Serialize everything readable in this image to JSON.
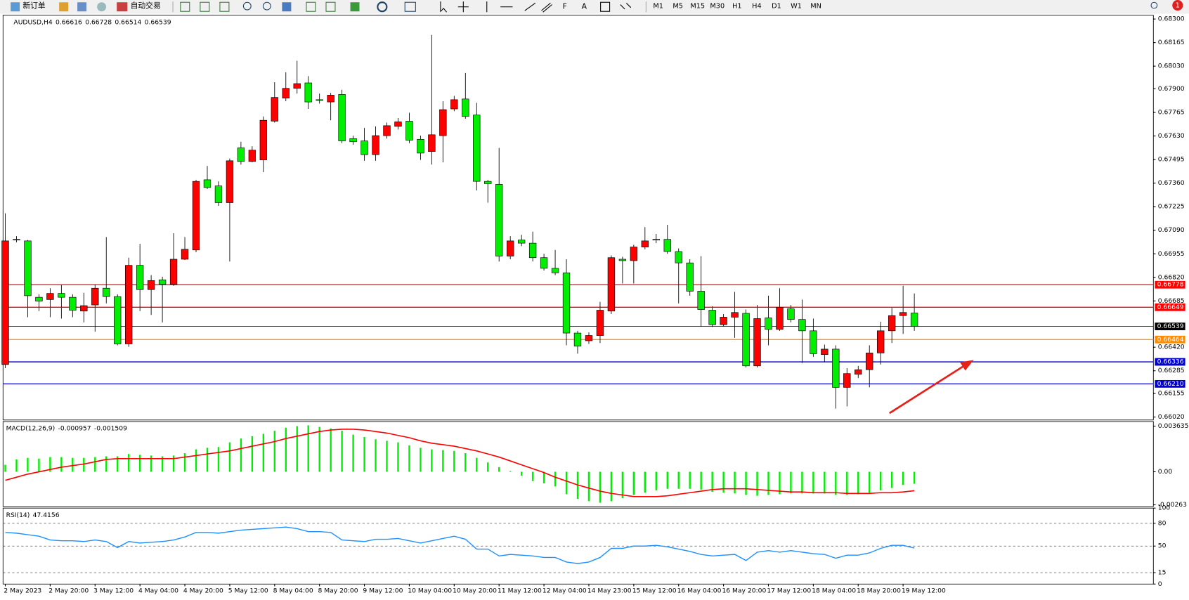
{
  "toolbar": {
    "new_order": "新订单",
    "auto_trading": "自动交易",
    "timeframes": [
      "M1",
      "M5",
      "M15",
      "M30",
      "H1",
      "H4",
      "D1",
      "W1",
      "MN"
    ],
    "notification_count": 1
  },
  "chart_data": [
    {
      "type": "candlestick",
      "title": "AUDUSD,H4",
      "up_color": "#ff0000",
      "down_color": "#00ee00",
      "open": [
        0.66321,
        0.67038,
        0.67029,
        0.66706,
        0.66693,
        0.66728,
        0.66706,
        0.66627,
        0.66662,
        0.66758,
        0.6671,
        0.66439,
        0.66889,
        0.6675,
        0.66806,
        0.6678,
        0.66924,
        0.66977,
        0.67379,
        0.67344,
        0.67248,
        0.67562,
        0.67484,
        0.67493,
        0.67715,
        0.67847,
        0.67903,
        0.67934,
        0.67838,
        0.67825,
        0.67868,
        0.67615,
        0.67602,
        0.67523,
        0.67632,
        0.67685,
        0.67715,
        0.67611,
        0.67541,
        0.67632,
        0.67785,
        0.67842,
        0.6775,
        0.6737,
        0.67353,
        0.66942,
        0.67034,
        0.67016,
        0.66933,
        0.66872,
        0.66846,
        0.66501,
        0.66457,
        0.66487,
        0.66627,
        0.66924,
        0.66916,
        0.66994,
        0.67038,
        0.67038,
        0.66968,
        0.66903,
        0.66741,
        0.66632,
        0.66549,
        0.66592,
        0.66614,
        0.66313,
        0.66588,
        0.66522,
        0.6664,
        0.66579,
        0.66514,
        0.66378,
        0.66409,
        0.6619,
        0.66265,
        0.66291,
        0.66387,
        0.66514,
        0.66601,
        0.66616
      ],
      "high": [
        0.67187,
        0.67056,
        0.67034,
        0.66723,
        0.66758,
        0.66776,
        0.66723,
        0.66732,
        0.6678,
        0.67051,
        0.66723,
        0.66933,
        0.67012,
        0.66833,
        0.66824,
        0.67073,
        0.67051,
        0.67379,
        0.67458,
        0.6737,
        0.67501,
        0.67597,
        0.67571,
        0.67742,
        0.67938,
        0.67995,
        0.68061,
        0.67973,
        0.67873,
        0.67877,
        0.67895,
        0.67632,
        0.67676,
        0.67685,
        0.67707,
        0.67733,
        0.67763,
        0.67632,
        0.68209,
        0.67829,
        0.6786,
        0.67991,
        0.6782,
        0.67379,
        0.67562,
        0.67056,
        0.67064,
        0.67082,
        0.66955,
        0.66977,
        0.66924,
        0.66514,
        0.66505,
        0.6668,
        0.66946,
        0.66938,
        0.67007,
        0.67108,
        0.67069,
        0.67121,
        0.66986,
        0.66924,
        0.66942,
        0.66654,
        0.6661,
        0.66737,
        0.66636,
        0.66662,
        0.66715,
        0.66758,
        0.66662,
        0.66693,
        0.66584,
        0.66435,
        0.66431,
        0.663,
        0.66313,
        0.66431,
        0.66566,
        0.66645,
        0.66772,
        0.66728
      ],
      "low": [
        0.663,
        0.67021,
        0.66592,
        0.66627,
        0.66592,
        0.66584,
        0.66592,
        0.66562,
        0.66509,
        0.66671,
        0.66431,
        0.66422,
        0.66627,
        0.66605,
        0.66562,
        0.66772,
        0.6692,
        0.66964,
        0.67326,
        0.6723,
        0.66911,
        0.67466,
        0.67479,
        0.67423,
        0.67707,
        0.67829,
        0.67873,
        0.67785,
        0.67816,
        0.6772,
        0.67589,
        0.6758,
        0.67488,
        0.67488,
        0.67615,
        0.67667,
        0.67589,
        0.67493,
        0.67466,
        0.67479,
        0.67772,
        0.67729,
        0.67318,
        0.67248,
        0.66911,
        0.66924,
        0.66999,
        0.66911,
        0.66859,
        0.66833,
        0.66431,
        0.66383,
        0.66439,
        0.66444,
        0.6661,
        0.66785,
        0.66785,
        0.66981,
        0.67016,
        0.66955,
        0.66671,
        0.66715,
        0.6654,
        0.66536,
        0.6654,
        0.66474,
        0.66304,
        0.66304,
        0.66431,
        0.66514,
        0.66562,
        0.6633,
        0.66365,
        0.66335,
        0.66068,
        0.66081,
        0.66243,
        0.6619,
        0.66321,
        0.66444,
        0.66496,
        0.66514
      ],
      "close": [
        0.67029,
        0.67034,
        0.66715,
        0.66684,
        0.66728,
        0.66706,
        0.66632,
        0.66658,
        0.66758,
        0.6671,
        0.66439,
        0.66889,
        0.6675,
        0.66802,
        0.6678,
        0.66924,
        0.66981,
        0.6737,
        0.67335,
        0.67248,
        0.67488,
        0.67484,
        0.67549,
        0.6772,
        0.67851,
        0.67903,
        0.6793,
        0.67825,
        0.67838,
        0.67864,
        0.67602,
        0.67597,
        0.67523,
        0.67632,
        0.67689,
        0.67711,
        0.67606,
        0.67532,
        0.67637,
        0.67781,
        0.67838,
        0.67742,
        0.6737,
        0.67357,
        0.66942,
        0.67029,
        0.67016,
        0.66933,
        0.66872,
        0.66846,
        0.66501,
        0.66426,
        0.66487,
        0.66632,
        0.66933,
        0.66916,
        0.66994,
        0.67029,
        0.67038,
        0.66968,
        0.66903,
        0.66741,
        0.66636,
        0.66549,
        0.66592,
        0.66619,
        0.66313,
        0.66584,
        0.66522,
        0.66649,
        0.66579,
        0.66514,
        0.66383,
        0.66409,
        0.6619,
        0.66269,
        0.66291,
        0.66387,
        0.66514,
        0.66601,
        0.66619,
        0.66539
      ],
      "xlim": [
        -0.2,
        102.3
      ],
      "xticks": [
        {
          "value": 0,
          "label": "2 May 2023"
        },
        {
          "value": 4,
          "label": "2 May 20:00"
        },
        {
          "value": 8,
          "label": "3 May 12:00"
        },
        {
          "value": 12,
          "label": "4 May 04:00"
        },
        {
          "value": 16,
          "label": "4 May 20:00"
        },
        {
          "value": 20,
          "label": "5 May 12:00"
        },
        {
          "value": 24,
          "label": "8 May 04:00"
        },
        {
          "value": 28,
          "label": "8 May 20:00"
        },
        {
          "value": 32,
          "label": "9 May 12:00"
        },
        {
          "value": 36,
          "label": "10 May 04:00"
        },
        {
          "value": 40,
          "label": "10 May 20:00"
        },
        {
          "value": 44,
          "label": "11 May 12:00"
        },
        {
          "value": 48,
          "label": "12 May 04:00"
        },
        {
          "value": 52,
          "label": "14 May 23:00"
        },
        {
          "value": 56,
          "label": "15 May 12:00"
        },
        {
          "value": 60,
          "label": "16 May 04:00"
        },
        {
          "value": 64,
          "label": "16 May 20:00"
        },
        {
          "value": 68,
          "label": "17 May 12:00"
        },
        {
          "value": 72,
          "label": "18 May 04:00"
        },
        {
          "value": 76,
          "label": "18 May 20:00"
        },
        {
          "value": 80,
          "label": "19 May 12:00"
        }
      ],
      "ylim": [
        0.66003,
        0.68322
      ],
      "yticks": [
        {
          "value": 0.683,
          "label": "0.68300"
        },
        0.68165,
        {
          "value": 0.6803,
          "label": "0.68030"
        },
        {
          "value": 0.679,
          "label": "0.67900"
        },
        0.67765,
        {
          "value": 0.6763,
          "label": "0.67630"
        },
        0.67495,
        {
          "value": 0.6736,
          "label": "0.67360"
        },
        0.67225,
        {
          "value": 0.6709,
          "label": "0.67090"
        },
        0.66955,
        {
          "value": 0.6682,
          "label": "0.66820"
        },
        0.66685,
        {
          "value": 0.6642,
          "label": "0.66420"
        },
        0.66285,
        0.66155,
        {
          "value": 0.6602,
          "label": "0.66020"
        }
      ],
      "levels": [
        {
          "value": 0.66778,
          "color": "#ff0000"
        },
        {
          "value": 0.66649,
          "color": "#ff0000"
        },
        {
          "value": 0.66539,
          "color": "#000000"
        },
        {
          "value": 0.66464,
          "color": "#ff8c00"
        },
        {
          "value": 0.66336,
          "color": "#0000cd"
        },
        {
          "value": 0.6621,
          "label": "0.66210",
          "color": "#0000cd"
        }
      ]
    },
    {
      "type": "macd",
      "title": "MACD(12,26,9)",
      "hist_color": "#00ee00",
      "signal_color": "#ff0000",
      "histogram": [
        0.000554,
        0.000986,
        0.001109,
        0.001047,
        0.00117,
        0.00117,
        0.001109,
        0.001109,
        0.00117,
        0.001232,
        0.001232,
        0.001417,
        0.001355,
        0.001294,
        0.001232,
        0.001294,
        0.001478,
        0.001786,
        0.00191,
        0.001971,
        0.002341,
        0.002649,
        0.002834,
        0.003018,
        0.003265,
        0.003511,
        0.003634,
        0.003696,
        0.003573,
        0.00345,
        0.003265,
        0.002957,
        0.002772,
        0.002587,
        0.002464,
        0.002341,
        0.002094,
        0.00191,
        0.001786,
        0.001725,
        0.001663,
        0.001478,
        0.001109,
        0.000739,
        0.00037,
        6.2e-05,
        -0.000308,
        -0.000739,
        -0.000924,
        -0.00117,
        -0.001786,
        -0.002156,
        -0.002341,
        -0.002464,
        -0.002341,
        -0.002094,
        -0.001848,
        -0.001663,
        -0.001478,
        -0.001355,
        -0.001355,
        -0.001355,
        -0.001417,
        -0.001602,
        -0.001663,
        -0.001725,
        -0.001848,
        -0.00191,
        -0.001848,
        -0.001786,
        -0.001725,
        -0.001725,
        -0.001725,
        -0.001725,
        -0.001848,
        -0.001848,
        -0.001786,
        -0.001663,
        -0.001478,
        -0.001294,
        -0.00105,
        -0.000957
      ],
      "signal": [
        -0.000678,
        -0.000431,
        -0.000185,
        0,
        0.000185,
        0.00037,
        0.000493,
        0.000616,
        0.000801,
        0.000986,
        0.001047,
        0.001047,
        0.001047,
        0.001047,
        0.001047,
        0.001047,
        0.00117,
        0.001294,
        0.001417,
        0.00154,
        0.001663,
        0.001848,
        0.002033,
        0.002218,
        0.002402,
        0.002649,
        0.002834,
        0.003018,
        0.003203,
        0.003326,
        0.003388,
        0.003388,
        0.003326,
        0.003203,
        0.00308,
        0.002895,
        0.00271,
        0.002464,
        0.002279,
        0.002156,
        0.002033,
        0.001848,
        0.001663,
        0.001417,
        0.00117,
        0.000862,
        0.000554,
        0.000246,
        -6.2e-05,
        -0.000431,
        -0.000739,
        -0.001047,
        -0.001294,
        -0.00154,
        -0.001725,
        -0.001848,
        -0.001971,
        -0.001971,
        -0.001971,
        -0.00191,
        -0.001786,
        -0.001663,
        -0.00154,
        -0.001417,
        -0.001355,
        -0.001355,
        -0.001355,
        -0.001417,
        -0.001478,
        -0.00154,
        -0.001602,
        -0.001602,
        -0.001663,
        -0.001663,
        -0.001663,
        -0.001725,
        -0.001725,
        -0.001725,
        -0.001663,
        -0.001663,
        -0.001602,
        -0.001509
      ],
      "ylim": [
        -0.00277,
        0.004
      ],
      "yticks": [
        0.003635,
        {
          "value": 0,
          "label": "0.00"
        },
        -0.00263
      ]
    },
    {
      "type": "rsi",
      "title": "RSI(14)",
      "color": "#1e90ff",
      "values": [
        68,
        67,
        65,
        63,
        58,
        57,
        57,
        56,
        58,
        56,
        48,
        56,
        54,
        55,
        56,
        58,
        62,
        68,
        68,
        67,
        69,
        71,
        72,
        73,
        74,
        75,
        73,
        69,
        69,
        68,
        58,
        57,
        56,
        59,
        59,
        60,
        57,
        54,
        57,
        60,
        63,
        59,
        46,
        46,
        37,
        39,
        38,
        37,
        35,
        35,
        29,
        27,
        29,
        35,
        47,
        47,
        50,
        50,
        51,
        49,
        46,
        43,
        39,
        37,
        38,
        39,
        31,
        42,
        44,
        42,
        44,
        42,
        40,
        39,
        34,
        38,
        38,
        41,
        47,
        51,
        51,
        47.4156
      ],
      "ylim": [
        0,
        100
      ],
      "yticks": [
        100,
        80,
        50,
        15,
        0
      ],
      "levels": [
        80,
        50,
        15
      ]
    }
  ]
}
